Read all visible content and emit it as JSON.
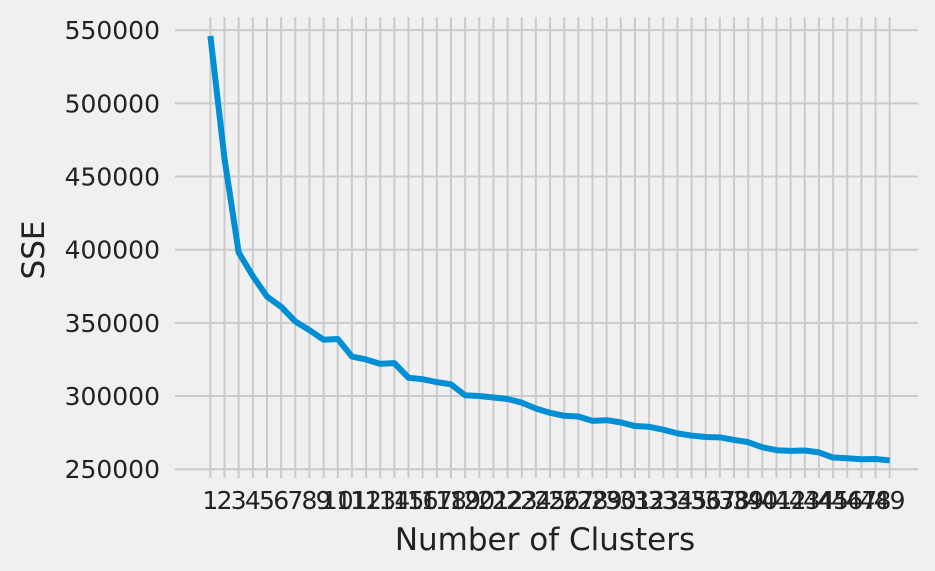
{
  "chart_data": {
    "type": "line",
    "title": "",
    "xlabel": "Number of Clusters",
    "ylabel": "SSE",
    "x": [
      1,
      2,
      3,
      4,
      5,
      6,
      7,
      8,
      9,
      10,
      11,
      12,
      13,
      14,
      15,
      16,
      17,
      18,
      19,
      20,
      21,
      22,
      23,
      24,
      25,
      26,
      27,
      28,
      29,
      30,
      31,
      32,
      33,
      34,
      35,
      36,
      37,
      38,
      39,
      40,
      41,
      42,
      43,
      44,
      45,
      46,
      47,
      48,
      49
    ],
    "series": [
      {
        "values": [
          546000,
          462000,
          398000,
          382000,
          368000,
          361000,
          351000,
          345000,
          338500,
          339000,
          327000,
          325000,
          322000,
          322500,
          312500,
          311500,
          309500,
          308000,
          300500,
          300000,
          299000,
          298000,
          295500,
          291500,
          288500,
          286500,
          286000,
          283000,
          283500,
          282000,
          279500,
          279000,
          277000,
          274500,
          273000,
          272000,
          271800,
          270000,
          268500,
          265000,
          263000,
          262500,
          262800,
          261500,
          258000,
          257500,
          256800,
          257000,
          256000
        ],
        "color": "#008fd5"
      }
    ],
    "yticks": [
      250000,
      300000,
      350000,
      400000,
      450000,
      500000,
      550000
    ],
    "ylim": [
      244000,
      559000
    ],
    "xlim": [
      -1.5,
      51
    ],
    "grid": true
  },
  "colors": {
    "background": "#f0f0f0",
    "grid": "#cbcbcb",
    "text": "#222222",
    "line": "#008fd5"
  }
}
